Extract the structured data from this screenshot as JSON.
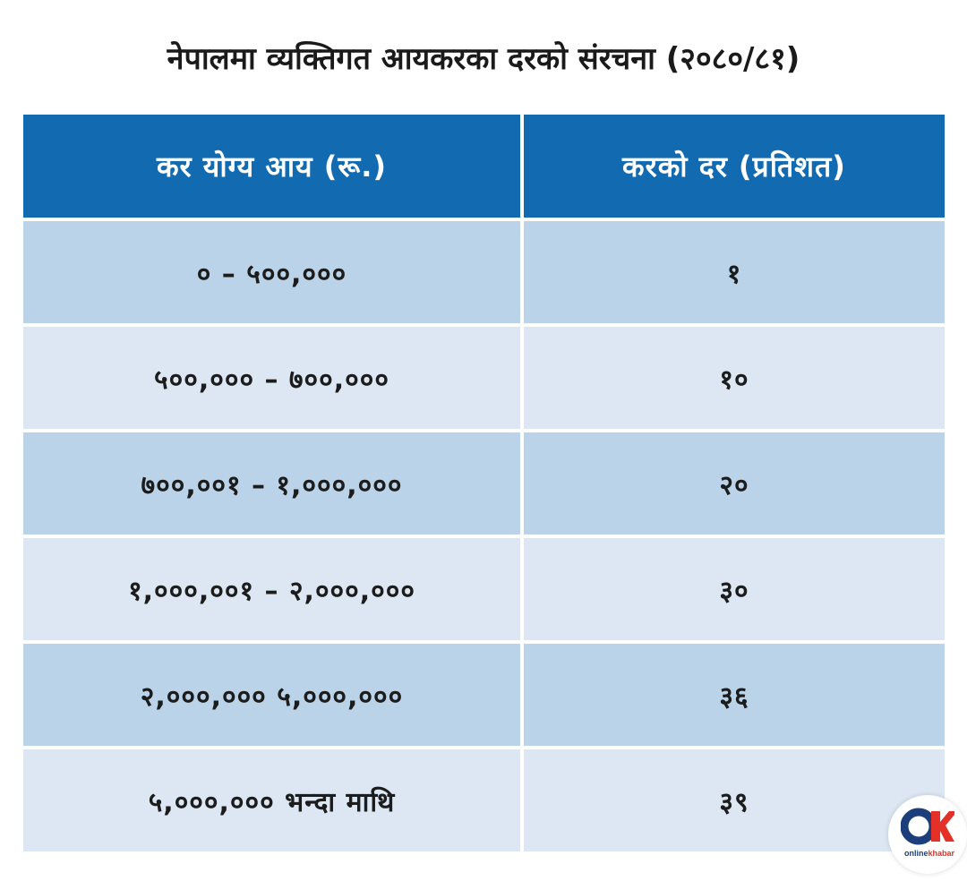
{
  "title": "नेपालमा व्यक्तिगत आयकरका दरको संरचना (२०८०/८१)",
  "table": {
    "headers": [
      "कर योग्य आय (रू.)",
      "करको दर (प्रतिशत)"
    ],
    "rows": [
      {
        "income": "० – ५००,०००",
        "rate": "१"
      },
      {
        "income": "५००,००० – ७००,०००",
        "rate": "१०"
      },
      {
        "income": "७००,००१ – १,०००,०००",
        "rate": "२०"
      },
      {
        "income": "१,०००,००१ – २,०००,०००",
        "rate": "३०"
      },
      {
        "income": "२,०००,००० ५,०००,०००",
        "rate": "३६"
      },
      {
        "income": "५,०००,००० भन्दा माथि",
        "rate": "३९"
      }
    ]
  },
  "logo": {
    "part1": "online",
    "part2": "khabar",
    "icon": "onlinekhabar-ok-logo-icon",
    "colors": {
      "primary": "#1c3f7c",
      "accent": "#e53027"
    }
  },
  "colors": {
    "header_bg": "#126ab0",
    "row_dark": "#bad3e8",
    "row_light": "#dce7f3"
  }
}
